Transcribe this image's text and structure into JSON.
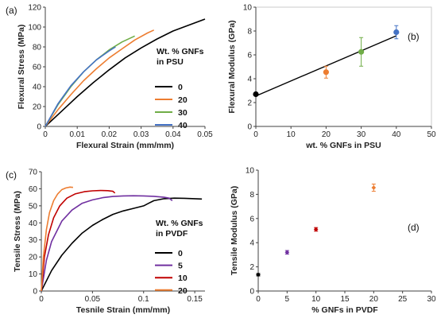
{
  "chart_data": [
    {
      "panel": "(a)",
      "type": "line",
      "xlabel": "Flexural Strain (mm/mm)",
      "ylabel": "Flexural Stress  (MPa)",
      "xlim": [
        0,
        0.05
      ],
      "ylim": [
        0,
        120
      ],
      "xticks": [
        0,
        0.01,
        0.02,
        0.03,
        0.04,
        0.05
      ],
      "xtick_labels": [
        "0",
        "0.01",
        "0.02",
        "0.03",
        "0.04",
        "0.05"
      ],
      "yticks": [
        0,
        20,
        40,
        60,
        80,
        100,
        120
      ],
      "ytick_labels": [
        "0",
        "20",
        "40",
        "60",
        "80",
        "100",
        "120"
      ],
      "legend_title": [
        "Wt. % GNFs",
        "in PSU"
      ],
      "legend_position": "right",
      "series": [
        {
          "name": "0",
          "color": "#000000",
          "x": [
            0,
            0.005,
            0.01,
            0.015,
            0.02,
            0.025,
            0.03,
            0.035,
            0.04,
            0.045,
            0.05
          ],
          "y": [
            0,
            15,
            30,
            44,
            57,
            69,
            79,
            88,
            96,
            102,
            108
          ]
        },
        {
          "name": "20",
          "color": "#ed7d31",
          "x": [
            0,
            0.004,
            0.008,
            0.012,
            0.016,
            0.02,
            0.024,
            0.028,
            0.032,
            0.034
          ],
          "y": [
            0,
            17,
            32,
            46,
            58,
            69,
            78,
            87,
            94,
            97
          ]
        },
        {
          "name": "30",
          "color": "#70ad47",
          "x": [
            0,
            0.004,
            0.008,
            0.012,
            0.016,
            0.02,
            0.024,
            0.028
          ],
          "y": [
            0,
            22,
            40,
            55,
            67,
            77,
            85,
            91
          ]
        },
        {
          "name": "40",
          "color": "#4472c4",
          "x": [
            0,
            0.004,
            0.008,
            0.012,
            0.016,
            0.02,
            0.022
          ],
          "y": [
            0,
            23,
            41,
            55,
            67,
            76,
            80
          ]
        }
      ]
    },
    {
      "panel": "(b)",
      "type": "scatter",
      "xlabel": "wt. % GNFs in PSU",
      "ylabel": "Flexural Modulus  (GPa)",
      "xlim": [
        0,
        50
      ],
      "ylim": [
        0,
        10
      ],
      "xticks": [
        0,
        10,
        20,
        30,
        40,
        50
      ],
      "xtick_labels": [
        "0",
        "10",
        "20",
        "30",
        "40",
        "50"
      ],
      "yticks": [
        0,
        2,
        4,
        6,
        8,
        10
      ],
      "ytick_labels": [
        "0",
        "2",
        "4",
        "6",
        "8",
        "10"
      ],
      "points": [
        {
          "x": 0,
          "y": 2.7,
          "err": 0.1,
          "color": "#000000"
        },
        {
          "x": 20,
          "y": 4.55,
          "err": 0.5,
          "color": "#ed7d31"
        },
        {
          "x": 30,
          "y": 6.25,
          "err": 1.2,
          "color": "#70ad47"
        },
        {
          "x": 40,
          "y": 7.9,
          "err": 0.55,
          "color": "#4472c4"
        }
      ],
      "trendline": {
        "x": [
          0,
          40
        ],
        "y": [
          2.55,
          7.6
        ],
        "color": "#000000"
      }
    },
    {
      "panel": "(c)",
      "type": "line",
      "xlabel": "Tesnile Strain (mm/mm)",
      "ylabel": "Tensile Stress  (MPa)",
      "xlim": [
        0,
        0.16
      ],
      "ylim": [
        0,
        70
      ],
      "xticks": [
        0,
        0.05,
        0.1,
        0.15
      ],
      "xtick_labels": [
        "0",
        "0.05",
        "0.1",
        "0.15"
      ],
      "yticks": [
        0,
        10,
        20,
        30,
        40,
        50,
        60,
        70
      ],
      "ytick_labels": [
        "0",
        "10",
        "20",
        "30",
        "40",
        "50",
        "60",
        "70"
      ],
      "legend_title": [
        "Wt. % GNFs",
        "in PVDF"
      ],
      "legend_position": "right",
      "series": [
        {
          "name": "0",
          "color": "#000000",
          "x": [
            0,
            0.01,
            0.02,
            0.03,
            0.04,
            0.05,
            0.06,
            0.07,
            0.08,
            0.09,
            0.1,
            0.105,
            0.11,
            0.12,
            0.13,
            0.14,
            0.15,
            0.157
          ],
          "y": [
            0,
            12,
            21,
            28,
            34,
            38.5,
            42,
            45,
            47,
            48.5,
            50,
            51.5,
            53,
            54.2,
            54.5,
            54.4,
            54.2,
            54
          ]
        },
        {
          "name": "5",
          "color": "#7030a0",
          "x": [
            0,
            0.005,
            0.01,
            0.02,
            0.03,
            0.04,
            0.05,
            0.06,
            0.07,
            0.08,
            0.09,
            0.1,
            0.11,
            0.12,
            0.125,
            0.128
          ],
          "y": [
            0,
            18,
            29,
            41,
            47.5,
            51.5,
            53.5,
            54.8,
            55.5,
            55.8,
            55.9,
            55.8,
            55.6,
            55,
            54.5,
            53
          ]
        },
        {
          "name": "10",
          "color": "#c00000",
          "x": [
            0,
            0.003,
            0.007,
            0.012,
            0.018,
            0.025,
            0.033,
            0.042,
            0.05,
            0.058,
            0.065,
            0.07,
            0.072
          ],
          "y": [
            0,
            20,
            33,
            43,
            50,
            54.5,
            57,
            58.3,
            58.8,
            59,
            58.9,
            58.5,
            57.5
          ]
        },
        {
          "name": "20",
          "color": "#ed7d31",
          "x": [
            0,
            0.002,
            0.005,
            0.008,
            0.012,
            0.016,
            0.02,
            0.024,
            0.028,
            0.031
          ],
          "y": [
            0,
            20,
            36,
            46,
            53,
            57,
            59.5,
            60.5,
            61,
            60.8
          ]
        }
      ]
    },
    {
      "panel": "(d)",
      "type": "scatter",
      "xlabel": "% GNFs in PVDF",
      "ylabel": "Tensile Modulus  (GPa)",
      "xlim": [
        0,
        30
      ],
      "ylim": [
        0,
        10
      ],
      "xticks": [
        0,
        5,
        10,
        15,
        20,
        25,
        30
      ],
      "xtick_labels": [
        "0",
        "5",
        "10",
        "15",
        "20",
        "25",
        "30"
      ],
      "yticks": [
        0,
        2,
        4,
        6,
        8,
        10
      ],
      "ytick_labels": [
        "0",
        "2",
        "4",
        "6",
        "8",
        "10"
      ],
      "points": [
        {
          "x": 0,
          "y": 1.35,
          "err": 0.1,
          "color": "#000000"
        },
        {
          "x": 5,
          "y": 3.2,
          "err": 0.15,
          "color": "#7030a0"
        },
        {
          "x": 10,
          "y": 5.1,
          "err": 0.15,
          "color": "#c00000"
        },
        {
          "x": 20,
          "y": 8.55,
          "err": 0.3,
          "color": "#ed7d31"
        }
      ]
    }
  ],
  "styles": {
    "axis_color": "#404040",
    "trendline_color": "#000000"
  }
}
